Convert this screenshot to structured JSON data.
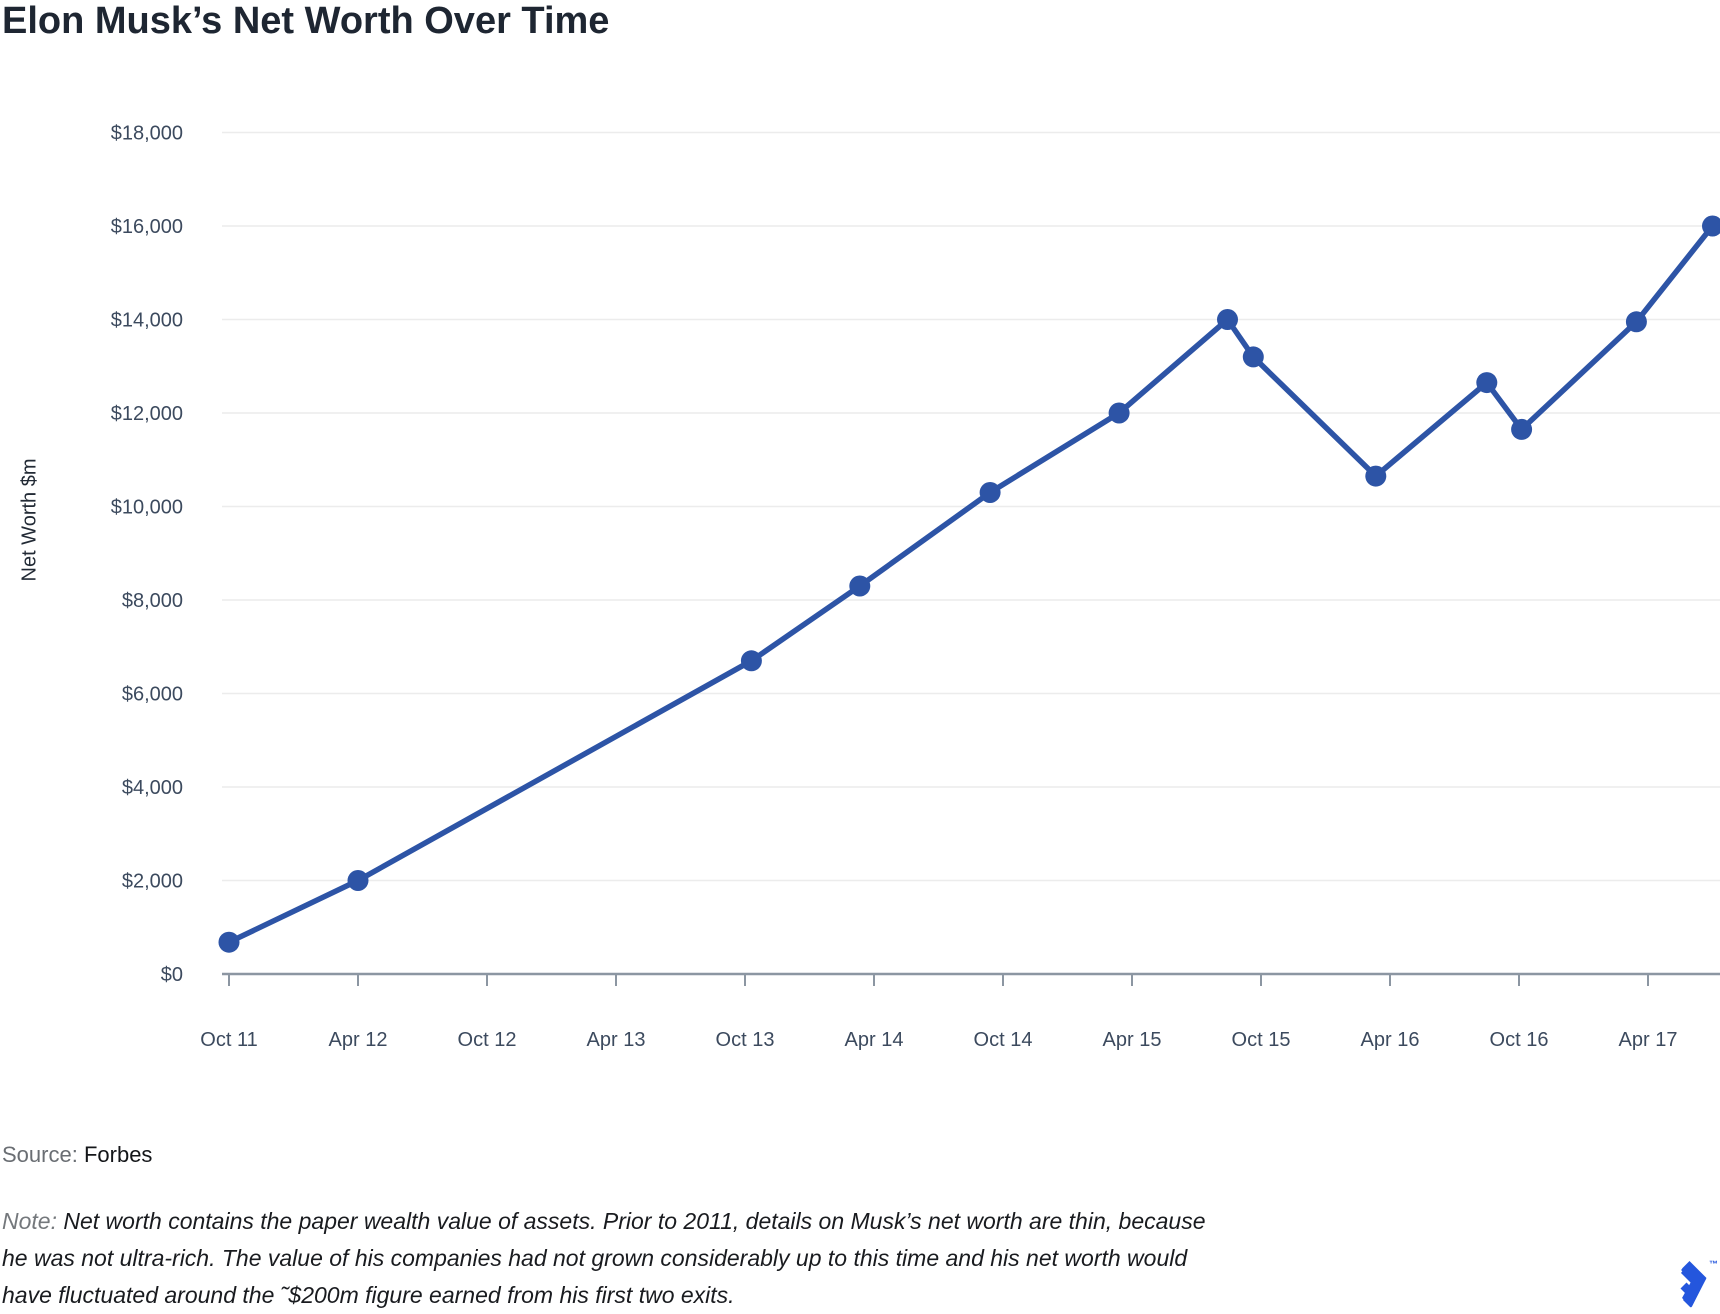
{
  "title": "Elon Musk’s Net Worth Over Time",
  "source": {
    "label": "Source:",
    "value": "Forbes"
  },
  "note": {
    "prefix": "Note:",
    "lines": [
      "Net worth contains the paper wealth value of assets. Prior to 2011, details on Musk’s net worth are thin, because",
      "he was not ultra-rich. The value of his companies had not grown considerably up to this time and his net worth would",
      "have fluctuated around the ˜$200m figure earned from his first two exits."
    ]
  },
  "logo": {
    "name": "toptal-logo",
    "trademark": "TM",
    "color": "#2456dd"
  },
  "chart_data": {
    "type": "line",
    "title": "Elon Musk’s Net Worth Over Time",
    "xlabel": "",
    "ylabel": "Net Worth $m",
    "ylim": [
      0,
      18000
    ],
    "y_tick_step": 2000,
    "y_tick_labels": [
      "$0",
      "$2,000",
      "$4,000",
      "$6,000",
      "$8,000",
      "$10,000",
      "$12,000",
      "$14,000",
      "$16,000",
      "$18,000"
    ],
    "x_tick_labels": [
      "Oct 11",
      "Apr 12",
      "Oct 12",
      "Apr 13",
      "Oct 13",
      "Apr 14",
      "Oct 14",
      "Apr 15",
      "Oct 15",
      "Apr 16",
      "Oct 16",
      "Apr 17"
    ],
    "grid": true,
    "legend": false,
    "series": [
      {
        "name": "Net worth ($m)",
        "points": [
          {
            "date": "Oct 11",
            "t": 0.0,
            "value": 680
          },
          {
            "date": "Apr 12",
            "t": 1.0,
            "value": 2000
          },
          {
            "date": "Oct 13",
            "t": 4.05,
            "value": 6700
          },
          {
            "date": "Mar 14",
            "t": 4.89,
            "value": 8300
          },
          {
            "date": "Sep 14",
            "t": 5.9,
            "value": 10300
          },
          {
            "date": "Mar 15",
            "t": 6.9,
            "value": 12000
          },
          {
            "date": "Aug 15",
            "t": 7.74,
            "value": 14000
          },
          {
            "date": "Oct 15",
            "t": 7.94,
            "value": 13200
          },
          {
            "date": "Mar 16",
            "t": 8.89,
            "value": 10650
          },
          {
            "date": "Aug 16",
            "t": 9.75,
            "value": 12650
          },
          {
            "date": "Oct 16",
            "t": 10.02,
            "value": 11650
          },
          {
            "date": "Mar 17",
            "t": 10.91,
            "value": 13950
          },
          {
            "date": "Jul 17",
            "t": 11.5,
            "value": 16000
          }
        ]
      }
    ],
    "colors": {
      "line": "#2d54a6",
      "point": "#2d54a6",
      "grid": "#ececec",
      "axis": "#8c96a2",
      "tick_label": "#3c4a5e"
    }
  }
}
